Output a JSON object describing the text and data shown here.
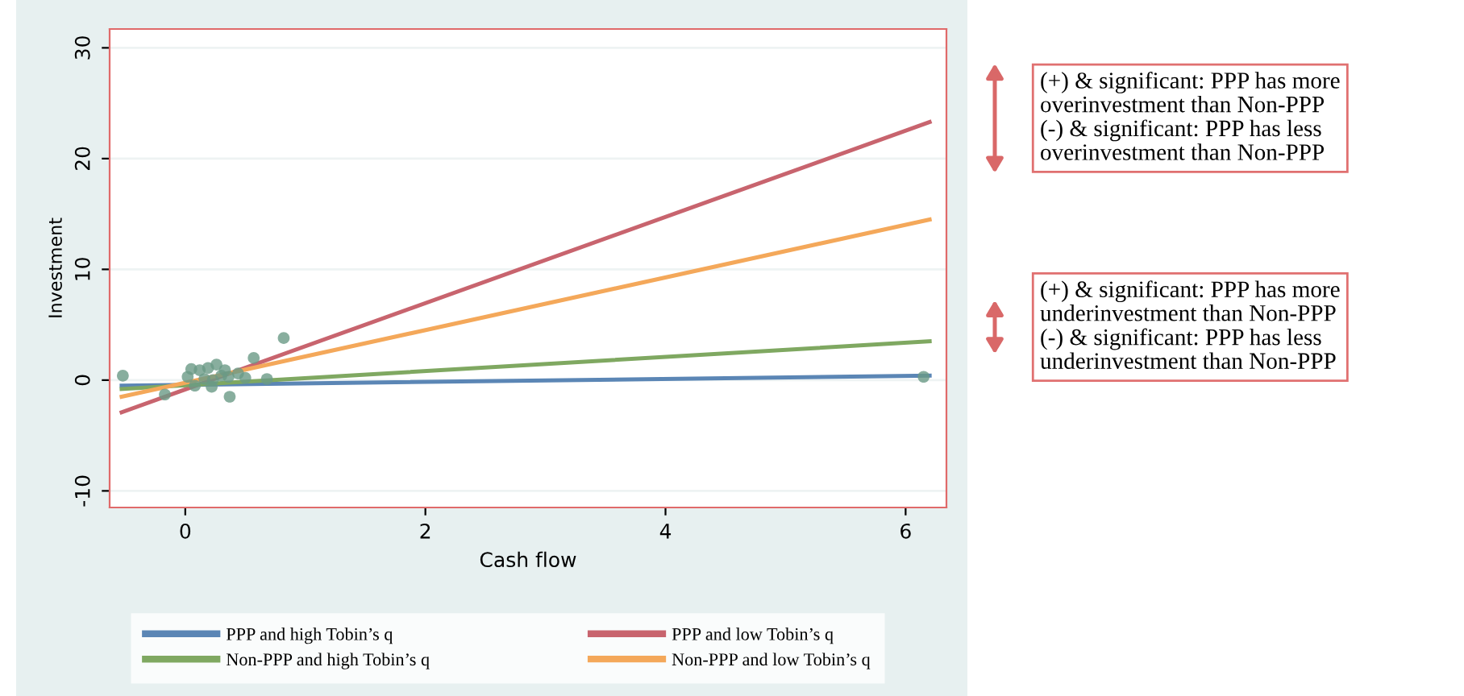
{
  "chart_data": {
    "type": "line",
    "xlabel": "Cash flow",
    "ylabel": "Investment",
    "xlim": [
      -0.63,
      6.34
    ],
    "ylim": [
      -11.5,
      31.7
    ],
    "xticks": [
      0,
      2,
      4,
      6
    ],
    "yticks": [
      -10,
      0,
      10,
      20,
      30
    ],
    "grid": "y",
    "legend": "bottom",
    "series": [
      {
        "type": "scatter",
        "color": "#6a9a86",
        "marker": "circle",
        "x": [
          -0.52,
          -0.17,
          0.37,
          0.57,
          0.82,
          0.68,
          6.15,
          0.02,
          0.16,
          0.23,
          0.3,
          0.05,
          0.12,
          0.19,
          0.26,
          0.33,
          0.08,
          0.22,
          0.36,
          0.44,
          0.5
        ],
        "values": [
          0.4,
          -1.3,
          -1.5,
          2.0,
          3.8,
          0.1,
          0.3,
          0.3,
          0.1,
          0.0,
          0.4,
          1.0,
          0.9,
          1.1,
          1.4,
          0.9,
          -0.5,
          -0.6,
          0.3,
          0.6,
          0.2
        ]
      },
      {
        "name": "PPP and high Tobin’s q",
        "color": "#5b86b5",
        "x": [
          -0.53,
          6.2
        ],
        "values": [
          -0.5,
          0.4
        ]
      },
      {
        "name": "PPP and low Tobin’s q",
        "color": "#c8646e",
        "x": [
          -0.53,
          6.2
        ],
        "values": [
          -2.9,
          23.3
        ]
      },
      {
        "name": "Non-PPP and high Tobin’s q",
        "color": "#7fa861",
        "x": [
          -0.53,
          6.2
        ],
        "values": [
          -0.8,
          3.5
        ]
      },
      {
        "name": "Non-PPP and low Tobin’s q",
        "color": "#f4a85a",
        "x": [
          -0.53,
          6.2
        ],
        "values": [
          -1.5,
          14.5
        ]
      }
    ],
    "annotations": [
      "(+) & significant: PPP has more\noverinvestment than Non-PPP\n(-) & significant: PPP has less\noverinvestment than Non-PPP",
      "(+) & significant: PPP has more\nunderinvestment than Non-PPP\n(-) & significant: PPP has less\nunderinvestment than Non-PPP"
    ]
  }
}
